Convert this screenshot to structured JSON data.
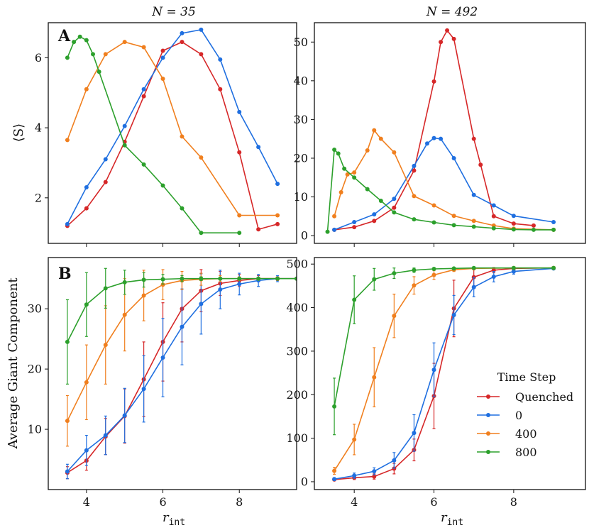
{
  "colors": {
    "Quenched": "#d62728",
    "0": "#1f6fe0",
    "400": "#f07f1e",
    "800": "#2ca02c"
  },
  "legend": {
    "title": "Time Step",
    "entries": [
      "Quenched",
      "0",
      "400",
      "800"
    ],
    "placement": "lower-right of bottom-right panel"
  },
  "column_titles": [
    "N = 35",
    "N = 492"
  ],
  "xlabel": "r_int",
  "row_labels": [
    "A",
    "B"
  ],
  "chart_data": [
    {
      "panel": "A-left",
      "type": "line",
      "title": "N = 35",
      "ylabel": "⟨S⟩",
      "xlim": [
        3.0,
        9.5
      ],
      "ylim": [
        0.7,
        7.0
      ],
      "xticks": [
        4,
        6,
        8
      ],
      "yticks": [
        2,
        4,
        6
      ],
      "series": [
        {
          "name": "Quenched",
          "x": [
            3.5,
            4,
            4.5,
            5,
            5.5,
            6,
            6.5,
            7,
            7.5,
            8,
            8.5,
            9
          ],
          "y": [
            1.2,
            1.7,
            2.45,
            3.6,
            4.9,
            6.2,
            6.45,
            6.1,
            5.1,
            3.3,
            1.1,
            1.25
          ]
        },
        {
          "name": "0",
          "x": [
            3.5,
            4,
            4.5,
            5,
            5.5,
            6,
            6.5,
            7,
            7.5,
            8,
            8.5,
            9
          ],
          "y": [
            1.25,
            2.3,
            3.1,
            4.05,
            5.1,
            6.0,
            6.7,
            6.8,
            5.95,
            4.45,
            3.45,
            2.4
          ]
        },
        {
          "name": "400",
          "x": [
            3.5,
            4,
            4.5,
            5,
            5.5,
            6,
            6.5,
            7,
            8,
            9
          ],
          "y": [
            3.65,
            5.1,
            6.1,
            6.45,
            6.3,
            5.4,
            3.75,
            3.15,
            1.5,
            1.5
          ]
        },
        {
          "name": "800",
          "x": [
            3.5,
            3.67,
            3.83,
            4,
            4.17,
            4.33,
            5,
            5.5,
            6,
            6.5,
            7,
            8
          ],
          "y": [
            6.0,
            6.45,
            6.6,
            6.5,
            6.1,
            5.6,
            3.5,
            2.95,
            2.35,
            1.7,
            1.0,
            1.0
          ]
        }
      ]
    },
    {
      "panel": "A-right",
      "type": "line",
      "title": "N = 492",
      "ylabel": "",
      "xlim": [
        3.0,
        9.8
      ],
      "ylim": [
        -2,
        55
      ],
      "xticks": [
        4,
        6,
        8
      ],
      "yticks": [
        0,
        10,
        20,
        30,
        40,
        50
      ],
      "series": [
        {
          "name": "Quenched",
          "x": [
            3.5,
            4,
            4.5,
            5,
            5.5,
            6,
            6.17,
            6.33,
            6.5,
            7,
            7.17,
            7.5,
            8,
            8.5
          ],
          "y": [
            1.5,
            2.2,
            3.8,
            7.2,
            16.8,
            39.8,
            50,
            53,
            50.8,
            25,
            18.3,
            5,
            3.1,
            2.6
          ]
        },
        {
          "name": "0",
          "x": [
            3.5,
            4,
            4.5,
            5,
            5.5,
            5.83,
            6,
            6.17,
            6.5,
            7,
            7.5,
            8,
            9
          ],
          "y": [
            1.5,
            3.5,
            5.5,
            9.5,
            18,
            23.8,
            25.2,
            25,
            20,
            10.5,
            7.8,
            5.1,
            3.5
          ]
        },
        {
          "name": "400",
          "x": [
            3.5,
            3.67,
            3.83,
            4,
            4.33,
            4.5,
            4.67,
            5,
            5.5,
            6,
            6.5,
            7,
            7.5,
            8,
            9
          ],
          "y": [
            5,
            11.2,
            15.8,
            16.3,
            22,
            27.2,
            25,
            21.5,
            10.2,
            7.8,
            5.1,
            3.8,
            2.6,
            1.8,
            1.5
          ]
        },
        {
          "name": "800",
          "x": [
            3.33,
            3.5,
            3.6,
            3.75,
            4,
            4.33,
            4.67,
            5,
            5.5,
            6,
            6.5,
            7,
            7.5,
            8,
            8.5,
            9
          ],
          "y": [
            1.0,
            22.2,
            21.2,
            17.3,
            15.0,
            12.0,
            9.0,
            6.0,
            4.2,
            3.4,
            2.7,
            2.3,
            1.9,
            1.6,
            1.5,
            1.5
          ]
        }
      ]
    },
    {
      "panel": "B-left",
      "type": "line",
      "title": "",
      "ylabel": "Average Giant Component",
      "xlim": [
        3.0,
        9.5
      ],
      "ylim": [
        0,
        38.5
      ],
      "xticks": [
        4,
        6,
        8
      ],
      "yticks": [
        10,
        20,
        30
      ],
      "series": [
        {
          "name": "Quenched",
          "x": [
            3.5,
            4,
            4.5,
            5,
            5.5,
            6,
            6.5,
            7,
            7.5,
            8,
            8.5,
            9
          ],
          "y": [
            2.8,
            4.8,
            8.8,
            12.2,
            18.3,
            24.5,
            30,
            33,
            34.2,
            34.7,
            35,
            35
          ],
          "err": [
            1.0,
            1.6,
            3.0,
            4.5,
            6.2,
            6.5,
            5.5,
            3.5,
            2.0,
            1.0,
            0.5,
            0.3
          ]
        },
        {
          "name": "0",
          "x": [
            3.5,
            4,
            4.5,
            5,
            5.5,
            6,
            6.5,
            7,
            7.5,
            8,
            8.5,
            9,
            9.5
          ],
          "y": [
            3.0,
            6.5,
            9.0,
            12.3,
            16.7,
            21.9,
            27.0,
            30.8,
            33.2,
            34.1,
            34.7,
            35,
            35
          ],
          "err": [
            1.2,
            2.5,
            3.2,
            4.5,
            5.5,
            6.5,
            6.3,
            5.0,
            3.2,
            1.8,
            1.0,
            0.5,
            0.2
          ]
        },
        {
          "name": "400",
          "x": [
            3.5,
            4,
            4.5,
            5,
            5.5,
            6,
            6.5,
            7,
            7.5,
            8,
            8.5,
            9,
            9.5
          ],
          "y": [
            11.4,
            17.8,
            24,
            29,
            32.2,
            34,
            34.7,
            34.9,
            35,
            35,
            35,
            35,
            35
          ],
          "err": [
            4.2,
            6.2,
            6.5,
            6.0,
            4.2,
            2.5,
            1.5,
            1.0,
            0.5,
            0.3,
            0.2,
            0.1,
            0.1
          ]
        },
        {
          "name": "800",
          "x": [
            3.5,
            4,
            4.5,
            5,
            5.5,
            6,
            6.5,
            7,
            7.5,
            8,
            8.5,
            9,
            9.5
          ],
          "y": [
            24.5,
            30.7,
            33.4,
            34.4,
            34.8,
            34.9,
            35,
            35,
            35,
            35,
            35,
            35,
            35
          ],
          "err": [
            7.0,
            5.3,
            3.3,
            2.0,
            1.2,
            0.8,
            0.5,
            0.3,
            0.2,
            0.1,
            0.1,
            0.1,
            0.1
          ]
        }
      ]
    },
    {
      "panel": "B-right",
      "type": "line",
      "title": "",
      "ylabel": "",
      "xlim": [
        3.0,
        9.8
      ],
      "ylim": [
        -18,
        515
      ],
      "xticks": [
        4,
        6,
        8
      ],
      "yticks": [
        0,
        100,
        200,
        300,
        400,
        500
      ],
      "series": [
        {
          "name": "Quenched",
          "x": [
            3.5,
            4,
            4.5,
            5,
            5.5,
            6,
            6.5,
            7,
            7.5,
            8,
            9
          ],
          "y": [
            5,
            9,
            12,
            30,
            73,
            197,
            398,
            470,
            486,
            490,
            491
          ],
          "err": [
            2,
            4,
            6,
            12,
            25,
            75,
            65,
            20,
            6,
            3,
            1
          ]
        },
        {
          "name": "0",
          "x": [
            3.5,
            4,
            4.5,
            5,
            5.5,
            6,
            6.5,
            7,
            7.5,
            8,
            9
          ],
          "y": [
            6,
            14,
            24,
            49,
            112,
            257,
            383,
            447,
            471,
            483,
            490
          ],
          "err": [
            3,
            6,
            8,
            18,
            42,
            62,
            45,
            22,
            12,
            6,
            2
          ]
        },
        {
          "name": "400",
          "x": [
            3.5,
            4,
            4.5,
            5,
            5.5,
            6,
            6.5,
            7,
            8,
            9
          ],
          "y": [
            25,
            97,
            240,
            381,
            451,
            475,
            487,
            490,
            491,
            491
          ],
          "err": [
            8,
            35,
            68,
            50,
            20,
            10,
            4,
            2,
            1,
            1
          ]
        },
        {
          "name": "800",
          "x": [
            3.5,
            4,
            4.5,
            5,
            5.5,
            6,
            6.5,
            7,
            8,
            9
          ],
          "y": [
            173,
            418,
            465,
            479,
            486,
            489,
            490,
            491,
            491,
            491
          ],
          "err": [
            65,
            55,
            25,
            12,
            5,
            2,
            1,
            1,
            1,
            1
          ]
        }
      ]
    }
  ]
}
